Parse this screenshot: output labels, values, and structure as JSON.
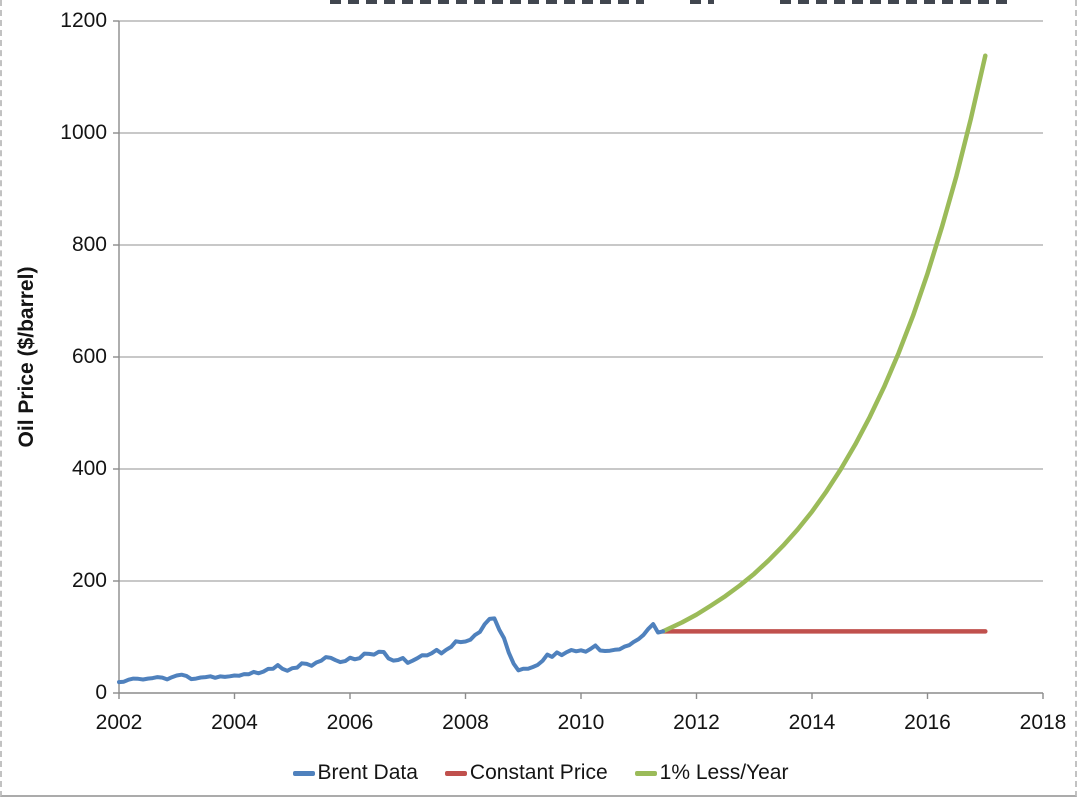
{
  "chart_data": {
    "type": "line",
    "title": "",
    "ylabel": "Oil Price ($/barrel)",
    "xlabel": "",
    "xlim": [
      2002,
      2018
    ],
    "ylim": [
      0,
      1200
    ],
    "x_ticks": [
      2002,
      2004,
      2006,
      2008,
      2010,
      2012,
      2014,
      2016,
      2018
    ],
    "y_ticks": [
      0,
      200,
      400,
      600,
      800,
      1000,
      1200
    ],
    "grid": "horizontal-only",
    "legend_position": "bottom-center",
    "axis_color": "#8C8C8C",
    "gridline_color": "#A8A8A8",
    "series": [
      {
        "name": "Brent Data",
        "color": "#4F81BD",
        "width": 4,
        "x_start": 2002.0,
        "x_step": 0.083333,
        "values": [
          19.5,
          20.2,
          23.7,
          25.7,
          25.3,
          24.1,
          25.8,
          26.6,
          28.4,
          27.5,
          24.3,
          28.3,
          31.3,
          32.7,
          30.5,
          24.8,
          25.8,
          27.6,
          28.4,
          29.8,
          27.1,
          29.6,
          28.7,
          29.8,
          31.3,
          30.9,
          33.8,
          33.6,
          37.6,
          35.1,
          38.3,
          43.0,
          43.2,
          49.8,
          43.1,
          39.6,
          44.2,
          45.4,
          53.1,
          52.0,
          48.6,
          54.4,
          57.5,
          64.1,
          62.9,
          58.5,
          55.2,
          56.9,
          63.0,
          60.1,
          62.1,
          70.4,
          69.9,
          68.6,
          73.7,
          73.2,
          61.7,
          57.8,
          58.9,
          62.5,
          53.7,
          57.6,
          62.1,
          67.5,
          67.2,
          71.1,
          77.0,
          70.8,
          77.2,
          82.3,
          92.4,
          90.9,
          92.0,
          95.0,
          103.7,
          109.1,
          122.8,
          132.3,
          133.2,
          113.2,
          98.1,
          71.9,
          52.5,
          40.4,
          43.4,
          43.3,
          46.5,
          50.2,
          57.3,
          68.6,
          64.4,
          72.5,
          67.7,
          72.8,
          76.7,
          74.5,
          76.2,
          73.7,
          78.8,
          84.8,
          75.9,
          75.0,
          75.6,
          77.1,
          77.8,
          82.7,
          85.3,
          91.4,
          96.5,
          104.0,
          114.6,
          123.0,
          108.0
        ],
        "extra_points": [
          [
            2011.42,
            110
          ]
        ]
      },
      {
        "name": "Constant Price",
        "color": "#C0504D",
        "width": 4.5,
        "x": [
          2011.42,
          2017.0
        ],
        "y": [
          110,
          110
        ]
      },
      {
        "name": "1% Less/Year",
        "color": "#9BBB59",
        "width": 4.5,
        "x": [
          2011.42,
          2011.75,
          2012.0,
          2012.25,
          2012.5,
          2012.75,
          2013.0,
          2013.25,
          2013.5,
          2013.75,
          2014.0,
          2014.25,
          2014.5,
          2014.75,
          2015.0,
          2015.25,
          2015.5,
          2015.75,
          2016.0,
          2016.25,
          2016.5,
          2016.75,
          2017.0
        ],
        "y": [
          110,
          126,
          140,
          156,
          173,
          192,
          213,
          237,
          263,
          292,
          324,
          360,
          400,
          444,
          493,
          547,
          607,
          674,
          749,
          832,
          923,
          1025,
          1138
        ]
      }
    ]
  },
  "legend": {
    "items": [
      {
        "label": "Brent Data",
        "color": "#4F81BD"
      },
      {
        "label": "Constant Price",
        "color": "#C0504D"
      },
      {
        "label": "1% Less/Year",
        "color": "#9BBB59"
      }
    ]
  }
}
